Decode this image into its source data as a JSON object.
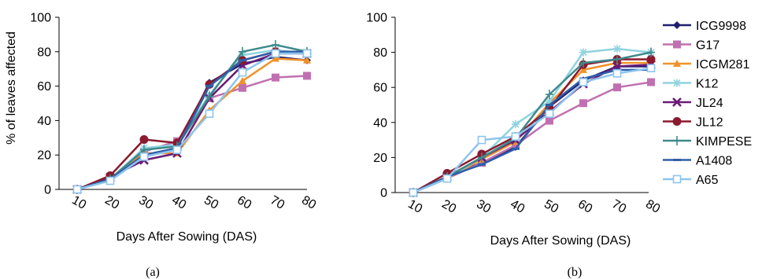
{
  "captions": [
    "(a)",
    "(b)"
  ],
  "legend": {
    "entries": [
      {
        "name": "ICG9998",
        "color": "#1f1f6e",
        "marker": "diamond"
      },
      {
        "name": "G17",
        "color": "#c070b0",
        "marker": "square"
      },
      {
        "name": "ICGM281",
        "color": "#f0922a",
        "marker": "triangle"
      },
      {
        "name": "K12",
        "color": "#8fd3e0",
        "marker": "asterisk"
      },
      {
        "name": "JL24",
        "color": "#6a1b76",
        "marker": "x"
      },
      {
        "name": "JL12",
        "color": "#8a1a2e",
        "marker": "circle"
      },
      {
        "name": "KIMPESE",
        "color": "#3f8a8c",
        "marker": "plus"
      },
      {
        "name": "A1408",
        "color": "#2f5fa8",
        "marker": "dash"
      },
      {
        "name": "A65",
        "color": "#8ec5ee",
        "marker": "open-square"
      }
    ]
  },
  "chart_data": [
    {
      "type": "line",
      "caption": "(a)",
      "xlabel": "Days After Sowing (DAS)",
      "ylabel": "% of leaves affected",
      "categories": [
        "10",
        "20",
        "30",
        "40",
        "50",
        "60",
        "70",
        "80"
      ],
      "ylim": [
        0,
        100
      ],
      "yticks": [
        0,
        20,
        40,
        60,
        80,
        100
      ],
      "grid": false,
      "series": [
        {
          "name": "ICG9998",
          "color": "#1f1f6e",
          "marker": "diamond",
          "values": [
            0,
            6,
            20,
            24,
            62,
            73,
            77,
            75
          ]
        },
        {
          "name": "G17",
          "color": "#c070b0",
          "marker": "square",
          "values": [
            0,
            6,
            22,
            28,
            53,
            59,
            65,
            66
          ]
        },
        {
          "name": "ICGM281",
          "color": "#f0922a",
          "marker": "triangle",
          "values": [
            0,
            6,
            21,
            21,
            46,
            63,
            76,
            75
          ]
        },
        {
          "name": "K12",
          "color": "#8fd3e0",
          "marker": "asterisk",
          "values": [
            0,
            6,
            24,
            26,
            55,
            78,
            81,
            79
          ]
        },
        {
          "name": "JL24",
          "color": "#6a1b76",
          "marker": "x",
          "values": [
            0,
            7,
            17,
            21,
            53,
            72,
            79,
            79
          ]
        },
        {
          "name": "JL12",
          "color": "#8a1a2e",
          "marker": "circle",
          "values": [
            0,
            8,
            29,
            27,
            61,
            75,
            80,
            79
          ]
        },
        {
          "name": "KIMPESE",
          "color": "#3f8a8c",
          "marker": "plus",
          "values": [
            0,
            6,
            23,
            25,
            54,
            80,
            84,
            80
          ]
        },
        {
          "name": "A1408",
          "color": "#2f5fa8",
          "marker": "dash",
          "values": [
            0,
            6,
            20,
            24,
            60,
            75,
            80,
            80
          ]
        },
        {
          "name": "A65",
          "color": "#8ec5ee",
          "marker": "open-square",
          "values": [
            0,
            5,
            19,
            23,
            44,
            68,
            79,
            79
          ]
        }
      ]
    },
    {
      "type": "line",
      "caption": "(b)",
      "xlabel": "Days After Sowing (DAS)",
      "ylabel": "",
      "categories": [
        "10",
        "20",
        "30",
        "40",
        "50",
        "60",
        "70",
        "80"
      ],
      "ylim": [
        0,
        100
      ],
      "yticks": [
        0,
        20,
        40,
        60,
        80,
        100
      ],
      "grid": false,
      "legend_position": "right",
      "series": [
        {
          "name": "ICG9998",
          "color": "#1f1f6e",
          "marker": "diamond",
          "values": [
            0,
            9,
            17,
            26,
            49,
            64,
            72,
            72
          ]
        },
        {
          "name": "G17",
          "color": "#c070b0",
          "marker": "square",
          "values": [
            0,
            8,
            17,
            27,
            41,
            51,
            60,
            63
          ]
        },
        {
          "name": "ICGM281",
          "color": "#f0922a",
          "marker": "triangle",
          "values": [
            0,
            8,
            19,
            29,
            51,
            70,
            74,
            74
          ]
        },
        {
          "name": "K12",
          "color": "#8fd3e0",
          "marker": "asterisk",
          "values": [
            0,
            8,
            20,
            39,
            52,
            80,
            82,
            80
          ]
        },
        {
          "name": "JL24",
          "color": "#6a1b76",
          "marker": "x",
          "values": [
            0,
            9,
            20,
            30,
            46,
            62,
            72,
            73
          ]
        },
        {
          "name": "JL12",
          "color": "#8a1a2e",
          "marker": "circle",
          "values": [
            0,
            11,
            22,
            32,
            48,
            73,
            76,
            76
          ]
        },
        {
          "name": "KIMPESE",
          "color": "#3f8a8c",
          "marker": "plus",
          "values": [
            0,
            9,
            20,
            31,
            56,
            74,
            76,
            80
          ]
        },
        {
          "name": "A1408",
          "color": "#2f5fa8",
          "marker": "dash",
          "values": [
            0,
            9,
            16,
            25,
            50,
            65,
            70,
            70
          ]
        },
        {
          "name": "A65",
          "color": "#8ec5ee",
          "marker": "open-square",
          "values": [
            0,
            8,
            30,
            32,
            45,
            63,
            68,
            71
          ]
        }
      ]
    }
  ]
}
